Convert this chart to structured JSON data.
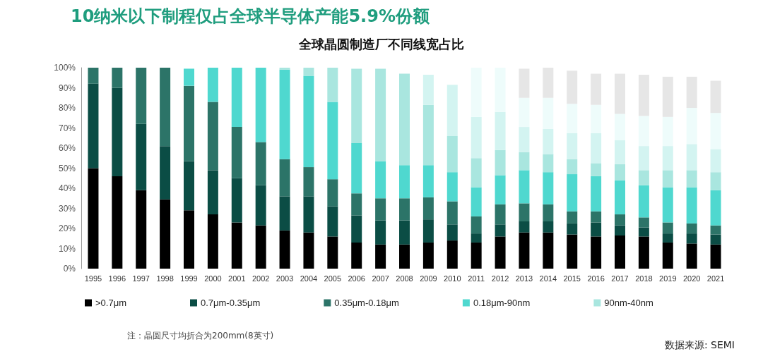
{
  "chart_data": {
    "type": "bar",
    "stacked": true,
    "title": "10纳米以下制程仅占全球半导体产能5.9%份额",
    "subtitle": "全球晶圆制造厂不同线宽占比",
    "categories": [
      "1995",
      "1996",
      "1997",
      "1998",
      "1999",
      "2000",
      "2001",
      "2002",
      "2003",
      "2004",
      "2005",
      "2006",
      "2007",
      "2008",
      "2009",
      "2010",
      "2011",
      "2012",
      "2013",
      "2014",
      "2015",
      "2016",
      "2017",
      "2018",
      "2019",
      "2020",
      "2021"
    ],
    "series": [
      {
        "name": ">0.7μm",
        "color": "#000000",
        "values": [
          50,
          46,
          39,
          34.5,
          29,
          27,
          23,
          21.5,
          19,
          18,
          16,
          13,
          12,
          12,
          13,
          14,
          13,
          16,
          18,
          18,
          17,
          16,
          16.5,
          16,
          13,
          12.5,
          12
        ]
      },
      {
        "name": "0.7μm-0.35μm",
        "color": "#0b4d45",
        "values": [
          42,
          44,
          33,
          26.5,
          24.5,
          22,
          22,
          20,
          17,
          18,
          15,
          13.5,
          12,
          12,
          11.5,
          8,
          4.5,
          6,
          5.5,
          5.5,
          5.5,
          7,
          5,
          4.5,
          4.5,
          5,
          5
        ]
      },
      {
        "name": "0.35μm-0.18μm",
        "color": "#2c7468",
        "values": [
          8,
          10,
          28,
          39,
          37.5,
          34,
          25.5,
          21.5,
          18.5,
          14.5,
          13.5,
          11,
          11,
          11,
          11,
          11.5,
          8.5,
          10,
          9,
          8.5,
          6,
          5.5,
          5.5,
          5,
          5.5,
          5,
          4.5
        ]
      },
      {
        "name": "0.18μm-90nm",
        "color": "#4fd8cf",
        "values": [
          null,
          null,
          null,
          null,
          8.5,
          17,
          29.5,
          37,
          44.5,
          45.5,
          38.5,
          25,
          18.5,
          16.5,
          16,
          14.5,
          14.5,
          14.5,
          16.5,
          16,
          18.5,
          17.5,
          17,
          16,
          17.5,
          18,
          17.5
        ]
      },
      {
        "name": "90nm-40nm",
        "color": "#a9e6df",
        "values": [
          null,
          null,
          null,
          null,
          null,
          null,
          null,
          null,
          1,
          4,
          17,
          37,
          46,
          45.5,
          30,
          18,
          14.5,
          12.5,
          9,
          9,
          7.5,
          6.5,
          8,
          7.5,
          8.5,
          8.5,
          9
        ]
      },
      {
        "color": "#d3f4f1",
        "values": [
          null,
          null,
          null,
          null,
          null,
          null,
          null,
          null,
          null,
          null,
          null,
          null,
          null,
          null,
          15,
          25.5,
          20.5,
          19,
          12.5,
          12.5,
          13,
          15,
          12,
          12,
          12,
          13,
          11.5
        ]
      },
      {
        "color": "#eefcfb",
        "values": [
          null,
          null,
          null,
          null,
          null,
          null,
          null,
          null,
          null,
          null,
          null,
          null,
          null,
          null,
          null,
          null,
          24.5,
          22,
          14.5,
          15.5,
          14.5,
          14,
          13,
          15,
          14.5,
          18,
          18
        ]
      },
      {
        "color": "#e6e6e6",
        "values": [
          null,
          null,
          null,
          null,
          null,
          null,
          null,
          null,
          null,
          null,
          null,
          null,
          null,
          null,
          null,
          null,
          null,
          null,
          14.5,
          15,
          16.5,
          15.5,
          20,
          20.5,
          20,
          15.5,
          16
        ]
      }
    ],
    "ylim": [
      0,
      100
    ],
    "yticks": [
      {
        "value": 0,
        "label": "0%"
      },
      {
        "value": 10,
        "label": "10%"
      },
      {
        "value": 20,
        "label": "20%"
      },
      {
        "value": 30,
        "label": "30%"
      },
      {
        "value": 40,
        "label": "40%"
      },
      {
        "value": 50,
        "label": "50%"
      },
      {
        "value": 60,
        "label": "60%"
      },
      {
        "value": 70,
        "label": "70%"
      },
      {
        "value": 80,
        "label": "80%"
      },
      {
        "value": 90,
        "label": "90%"
      },
      {
        "value": 100,
        "label": "100%"
      }
    ],
    "grid": false,
    "legend": "bottom",
    "annotations": [
      "注：晶圆尺寸均折合为200mm(8英寸)",
      "数据来源: SEMI"
    ]
  }
}
